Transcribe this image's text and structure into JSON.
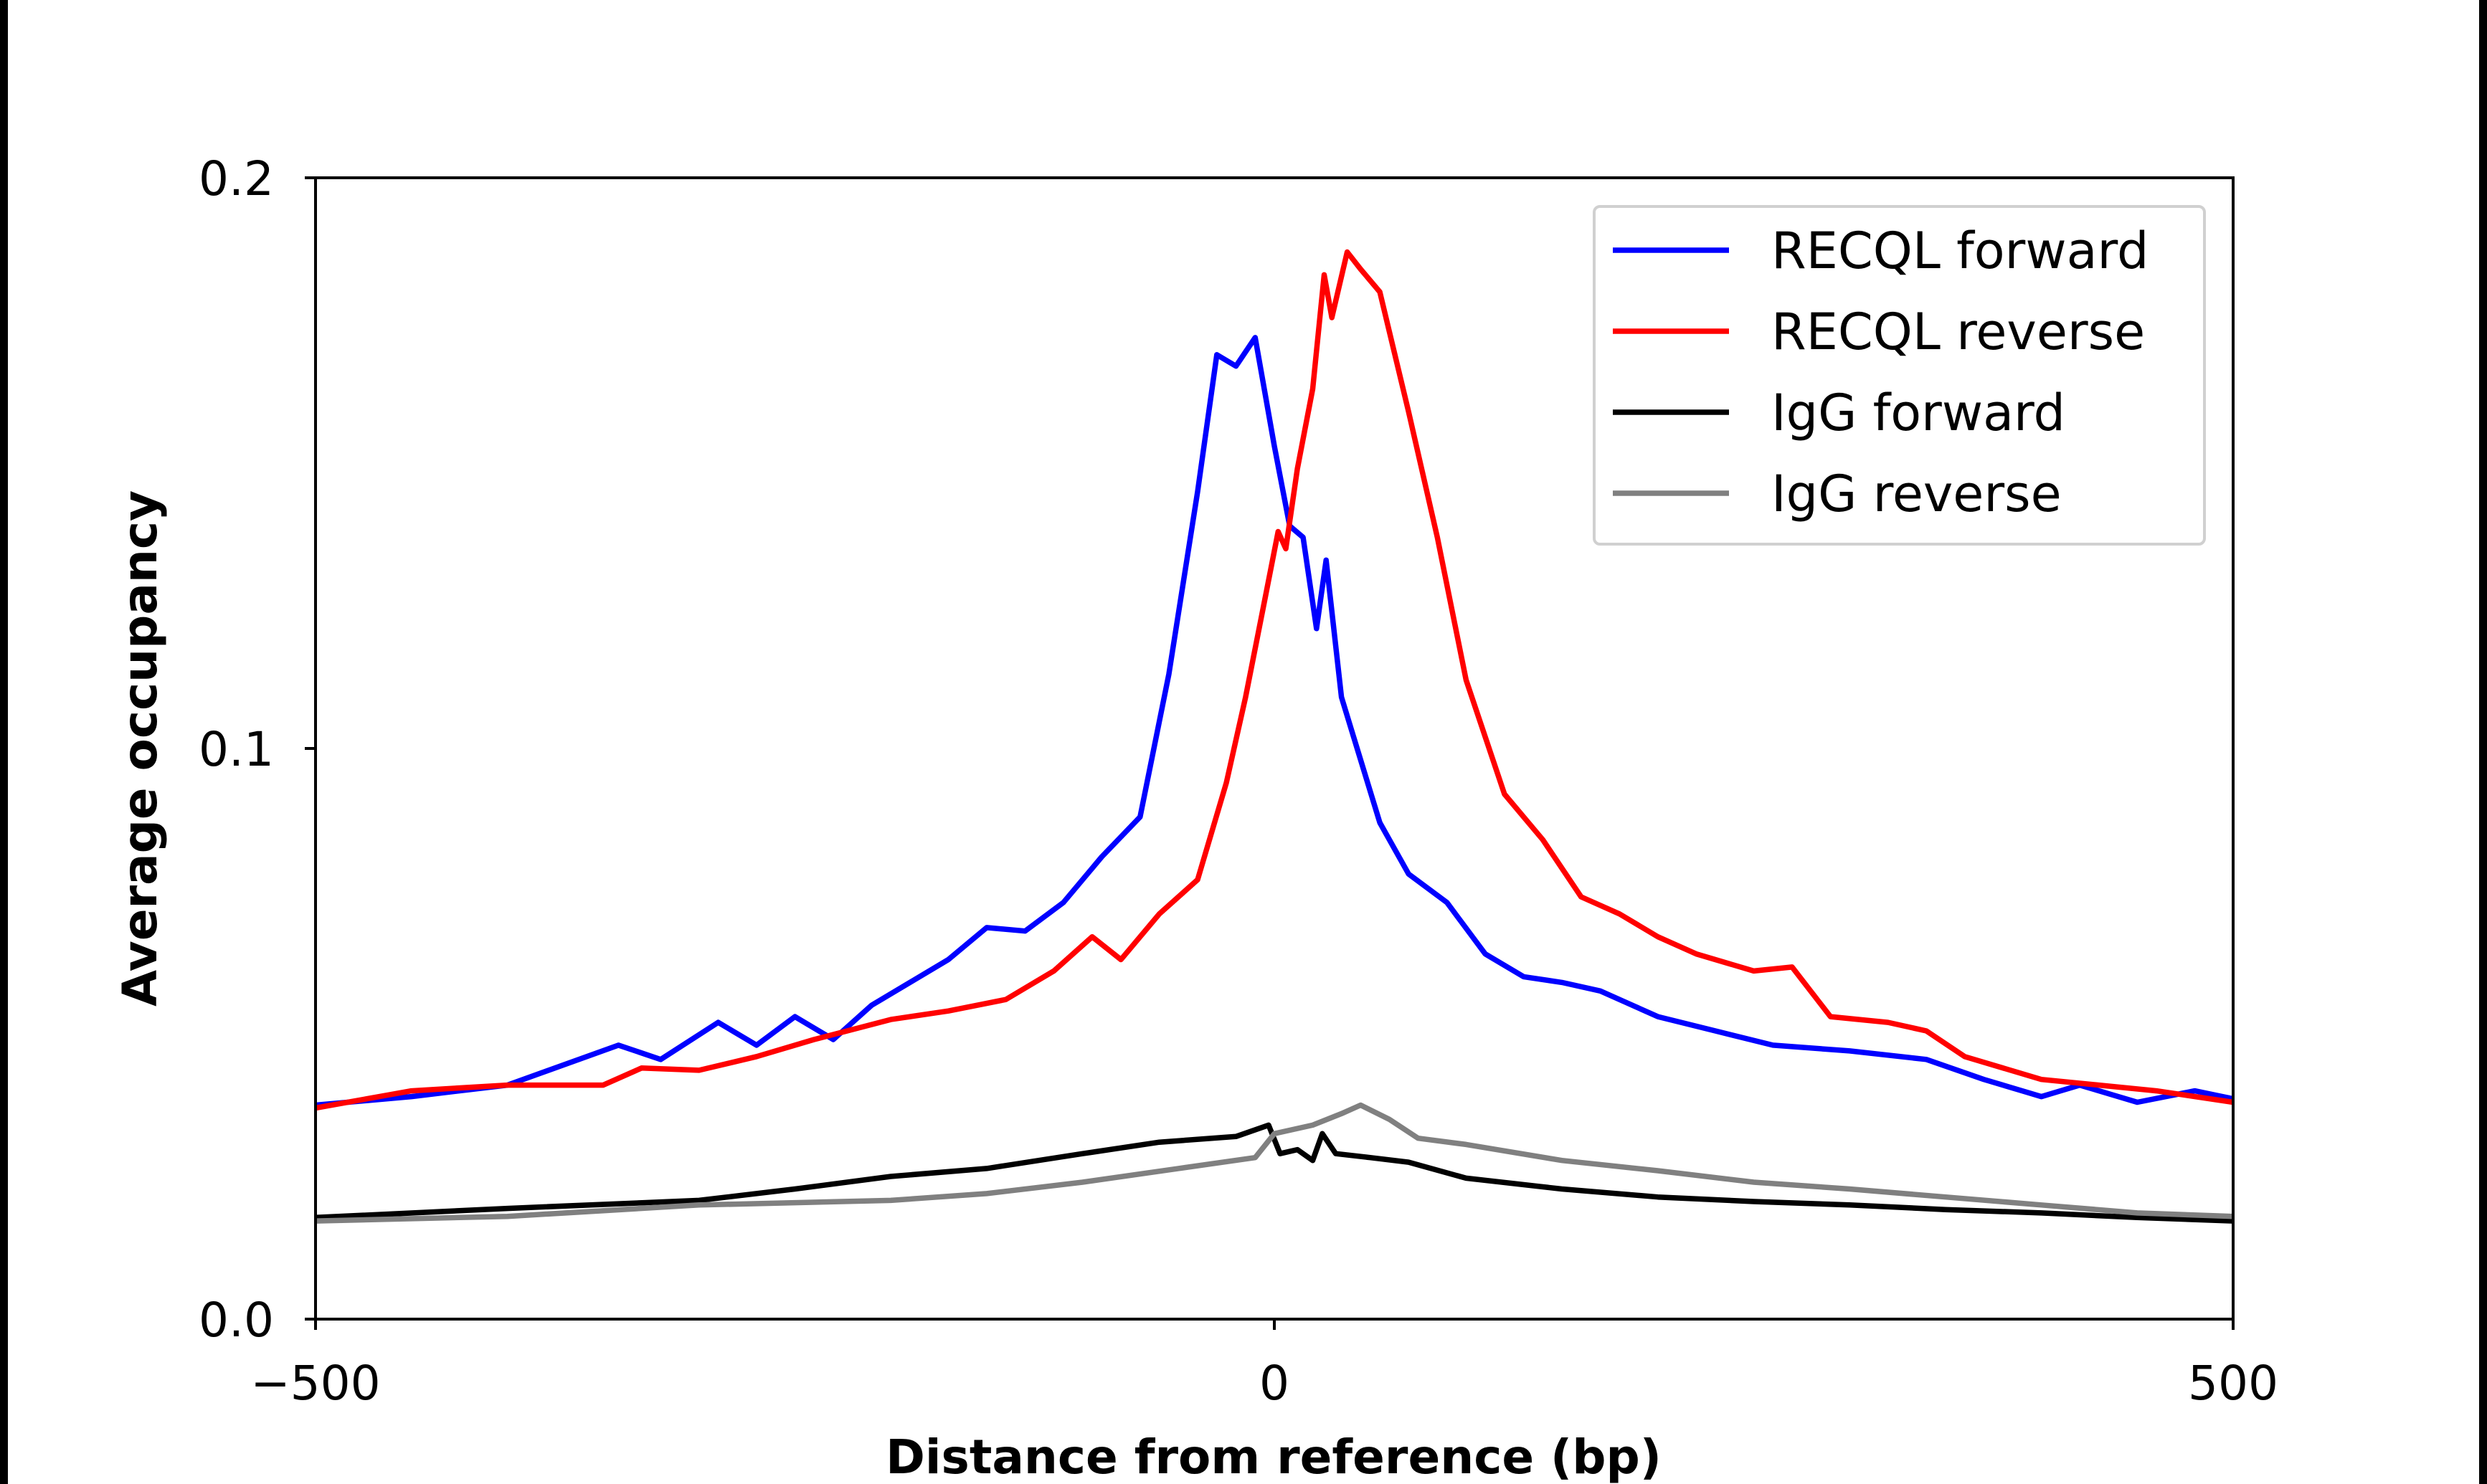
{
  "chart_data": {
    "type": "line",
    "title": "",
    "xlabel": "Distance from reference (bp)",
    "ylabel": "Average occupancy",
    "xlim": [
      -500,
      500
    ],
    "ylim": [
      0,
      0.2
    ],
    "xticks": [
      {
        "value": -500,
        "label": "−500"
      },
      {
        "value": 0,
        "label": "0"
      },
      {
        "value": 500,
        "label": "500"
      }
    ],
    "yticks": [
      {
        "value": 0,
        "label": "0.0"
      },
      {
        "value": 0.1,
        "label": "0.1"
      },
      {
        "value": 0.2,
        "label": "0.2"
      }
    ],
    "grid": false,
    "legend_position": "top-right",
    "series": [
      {
        "name": "RECQL forward",
        "color": "#0000ff",
        "x": [
          -500,
          -450,
          -400,
          -342,
          -320,
          -290,
          -270,
          -250,
          -230,
          -210,
          -190,
          -170,
          -150,
          -130,
          -110,
          -90,
          -70,
          -55,
          -40,
          -30,
          -20,
          -10,
          0,
          8,
          15,
          22,
          27,
          35,
          45,
          55,
          70,
          90,
          110,
          130,
          150,
          170,
          200,
          230,
          260,
          300,
          340,
          370,
          400,
          420,
          450,
          480,
          500
        ],
        "y": [
          0.0375,
          0.039,
          0.041,
          0.048,
          0.0455,
          0.052,
          0.048,
          0.053,
          0.049,
          0.055,
          0.059,
          0.063,
          0.0686,
          0.068,
          0.073,
          0.081,
          0.088,
          0.113,
          0.145,
          0.169,
          0.167,
          0.172,
          0.153,
          0.139,
          0.137,
          0.121,
          0.133,
          0.109,
          0.098,
          0.087,
          0.078,
          0.073,
          0.064,
          0.06,
          0.059,
          0.0575,
          0.053,
          0.0505,
          0.048,
          0.047,
          0.0455,
          0.042,
          0.039,
          0.041,
          0.038,
          0.04,
          0.0386
        ]
      },
      {
        "name": "RECQL reverse",
        "color": "#ff0000",
        "x": [
          -500,
          -450,
          -400,
          -350,
          -330,
          -300,
          -270,
          -240,
          -200,
          -170,
          -140,
          -115,
          -95,
          -80,
          -60,
          -40,
          -25,
          -15,
          -5,
          2,
          6,
          12,
          20,
          26,
          30,
          38,
          45,
          55,
          70,
          85,
          100,
          120,
          140,
          160,
          180,
          200,
          220,
          250,
          270,
          290,
          320,
          340,
          360,
          400,
          430,
          460,
          500
        ],
        "y": [
          0.037,
          0.04,
          0.041,
          0.041,
          0.044,
          0.0436,
          0.046,
          0.049,
          0.0525,
          0.054,
          0.056,
          0.061,
          0.067,
          0.063,
          0.071,
          0.077,
          0.094,
          0.109,
          0.126,
          0.138,
          0.135,
          0.149,
          0.163,
          0.183,
          0.1755,
          0.187,
          0.184,
          0.18,
          0.159,
          0.137,
          0.112,
          0.092,
          0.084,
          0.074,
          0.071,
          0.067,
          0.064,
          0.061,
          0.0617,
          0.053,
          0.052,
          0.0505,
          0.046,
          0.042,
          0.041,
          0.04,
          0.038
        ]
      },
      {
        "name": "IgG forward",
        "color": "#000000",
        "x": [
          -500,
          -400,
          -300,
          -250,
          -200,
          -150,
          -100,
          -60,
          -20,
          -3,
          3,
          12,
          20,
          25,
          32,
          50,
          70,
          100,
          150,
          200,
          250,
          300,
          350,
          400,
          450,
          500
        ],
        "y": [
          0.0178,
          0.0194,
          0.0208,
          0.0228,
          0.025,
          0.0264,
          0.029,
          0.031,
          0.032,
          0.034,
          0.029,
          0.0297,
          0.0278,
          0.0325,
          0.029,
          0.0283,
          0.0275,
          0.0247,
          0.0228,
          0.0214,
          0.0206,
          0.02,
          0.0192,
          0.0186,
          0.0178,
          0.0172
        ]
      },
      {
        "name": "IgG reverse",
        "color": "#808080",
        "x": [
          -500,
          -400,
          -300,
          -200,
          -150,
          -100,
          -50,
          -10,
          0,
          20,
          35,
          45,
          60,
          75,
          100,
          150,
          200,
          250,
          300,
          350,
          400,
          450,
          500
        ],
        "y": [
          0.0172,
          0.018,
          0.02,
          0.0208,
          0.022,
          0.024,
          0.0264,
          0.0283,
          0.0325,
          0.034,
          0.036,
          0.0375,
          0.035,
          0.0317,
          0.0306,
          0.0278,
          0.026,
          0.024,
          0.0228,
          0.0214,
          0.02,
          0.0186,
          0.018
        ]
      }
    ]
  }
}
